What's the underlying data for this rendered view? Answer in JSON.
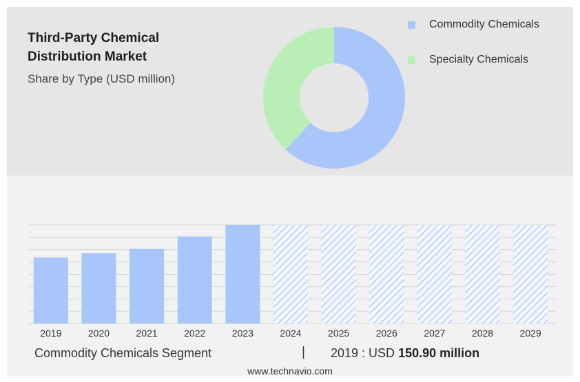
{
  "header": {
    "title": "Third-Party Chemical Distribution Market",
    "subtitle": "Share by Type (USD million)"
  },
  "legend": [
    {
      "label": "Commodity Chemicals",
      "color": "#a9c6fb"
    },
    {
      "label": "Specialty Chemicals",
      "color": "#b9efb7"
    }
  ],
  "footer": {
    "segment_label": "Commodity Chemicals Segment",
    "separator": "|",
    "year_text": "2019 : USD",
    "value_text": "150.90 million",
    "brand": "www.technavio.com"
  },
  "chart_data": [
    {
      "type": "pie",
      "style": "donut",
      "labels": [
        "Commodity Chemicals",
        "Specialty Chemicals"
      ],
      "values": [
        62,
        38
      ],
      "colors": [
        "#a9c6fb",
        "#b9efb7"
      ]
    },
    {
      "type": "bar",
      "categories": [
        "2019",
        "2020",
        "2021",
        "2022",
        "2023",
        "2024",
        "2025",
        "2026",
        "2027",
        "2028",
        "2029"
      ],
      "values": [
        150.9,
        160.5,
        170.5,
        199.0,
        225.0,
        null,
        null,
        null,
        null,
        null,
        null
      ],
      "forecast_categories": [
        "2024",
        "2025",
        "2026",
        "2027",
        "2028",
        "2029"
      ],
      "ylim": [
        0,
        225
      ],
      "grid": true,
      "bar_color": "#a9c6fb",
      "forecast_style": "hatched"
    }
  ]
}
